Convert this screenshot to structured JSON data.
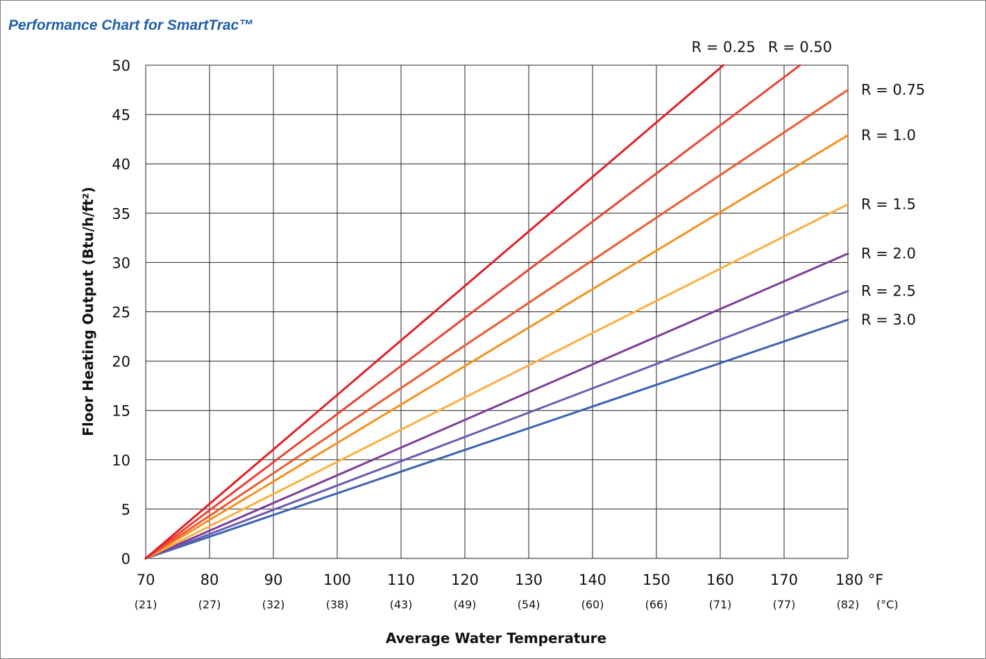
{
  "chart_data": {
    "type": "line",
    "title": "Performance Chart for SmartTrac™",
    "title_color": "#1f5fa6",
    "xlabel": "Average Water Temperature",
    "ylabel": "Floor Heating Output (Btu/h/ft²)",
    "xlim": [
      70,
      180
    ],
    "ylim": [
      0,
      50
    ],
    "grid": true,
    "x_ticks": [
      70,
      80,
      90,
      100,
      110,
      120,
      130,
      140,
      150,
      160,
      170,
      180
    ],
    "x_tick_labels": [
      "70",
      "80",
      "90",
      "100",
      "110",
      "120",
      "130",
      "140",
      "150",
      "160",
      "170",
      "180 °F"
    ],
    "x_celsius_labels": [
      "(21)",
      "(27)",
      "(32)",
      "(38)",
      "(43)",
      "(49)",
      "(54)",
      "(60)",
      "(66)",
      "(71)",
      "(77)",
      "(82)"
    ],
    "celsius_unit": "(°C)",
    "y_ticks": [
      0,
      5,
      10,
      15,
      20,
      25,
      30,
      35,
      40,
      45,
      50
    ],
    "y_tick_labels": [
      "0",
      "5",
      "10",
      "15",
      "20",
      "25",
      "30",
      "35",
      "40",
      "45",
      "50"
    ],
    "series": [
      {
        "name": "R = 0.25",
        "color": "#e31e24",
        "x": [
          70,
          160.5
        ],
        "y": [
          0,
          50
        ]
      },
      {
        "name": "R = 0.50",
        "color": "#ea4335",
        "x": [
          70,
          172.5
        ],
        "y": [
          0,
          50
        ]
      },
      {
        "name": "R = 0.75",
        "color": "#ed5a2e",
        "x": [
          70,
          180
        ],
        "y": [
          0,
          47.5
        ]
      },
      {
        "name": "R = 1.0",
        "color": "#f5901e",
        "x": [
          70,
          180
        ],
        "y": [
          0,
          42.9
        ]
      },
      {
        "name": "R = 1.5",
        "color": "#fbb040",
        "x": [
          70,
          180
        ],
        "y": [
          0,
          35.9
        ]
      },
      {
        "name": "R = 2.0",
        "color": "#7d3c98",
        "x": [
          70,
          180
        ],
        "y": [
          0,
          30.9
        ]
      },
      {
        "name": "R = 2.5",
        "color": "#6b5bb0",
        "x": [
          70,
          180
        ],
        "y": [
          0,
          27.1
        ]
      },
      {
        "name": "R = 3.0",
        "color": "#3a62b0",
        "x": [
          70,
          180
        ],
        "y": [
          0,
          24.2
        ]
      }
    ]
  }
}
